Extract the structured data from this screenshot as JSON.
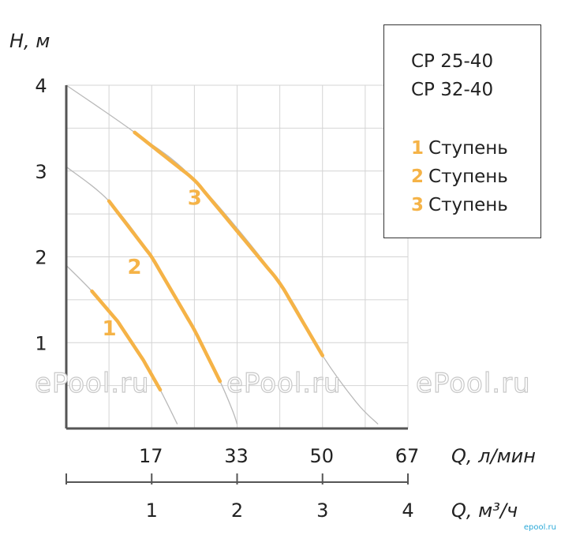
{
  "chart_data": {
    "type": "line",
    "ylabel": "H, м",
    "xlabel_top": "Q, л/мин",
    "xlabel_bottom": "Q, м³/ч",
    "ylim": [
      0,
      4
    ],
    "xlim": [
      0,
      4
    ],
    "y_ticks": [
      "1",
      "2",
      "3",
      "4"
    ],
    "x_ticks_top": [
      "17",
      "33",
      "50",
      "67"
    ],
    "x_ticks_bottom": [
      "1",
      "2",
      "3",
      "4"
    ],
    "grid": true,
    "series": [
      {
        "name": "1",
        "label": "1",
        "x": [
          0.0,
          0.3,
          0.6,
          0.9,
          1.1,
          1.3
        ],
        "y": [
          1.9,
          1.6,
          1.25,
          0.8,
          0.45,
          0.05
        ],
        "highlight_range": [
          0.3,
          1.1
        ]
      },
      {
        "name": "2",
        "label": "2",
        "x": [
          0.0,
          0.5,
          1.0,
          1.5,
          1.8,
          1.95,
          2.0
        ],
        "y": [
          3.05,
          2.65,
          2.0,
          1.15,
          0.55,
          0.2,
          0.05
        ],
        "highlight_range": [
          0.5,
          1.8
        ]
      },
      {
        "name": "3",
        "label": "3",
        "x": [
          0.0,
          0.8,
          1.5,
          2.5,
          3.0,
          3.4,
          3.65
        ],
        "y": [
          4.0,
          3.45,
          2.9,
          1.7,
          0.85,
          0.3,
          0.05
        ],
        "highlight_range": [
          0.8,
          3.0
        ]
      }
    ]
  },
  "legend": {
    "models": [
      "CP 25-40",
      "CP 32-40"
    ],
    "items": [
      {
        "num": "1",
        "label": "Ступень"
      },
      {
        "num": "2",
        "label": "Ступень"
      },
      {
        "num": "3",
        "label": "Ступень"
      }
    ]
  },
  "watermark": "ePool.ru",
  "corner_mark": "epool.ru",
  "colors": {
    "highlight": "#f5b347",
    "curve": "#b9b9b9",
    "grid": "#d4d4d4",
    "axis": "#555555"
  }
}
